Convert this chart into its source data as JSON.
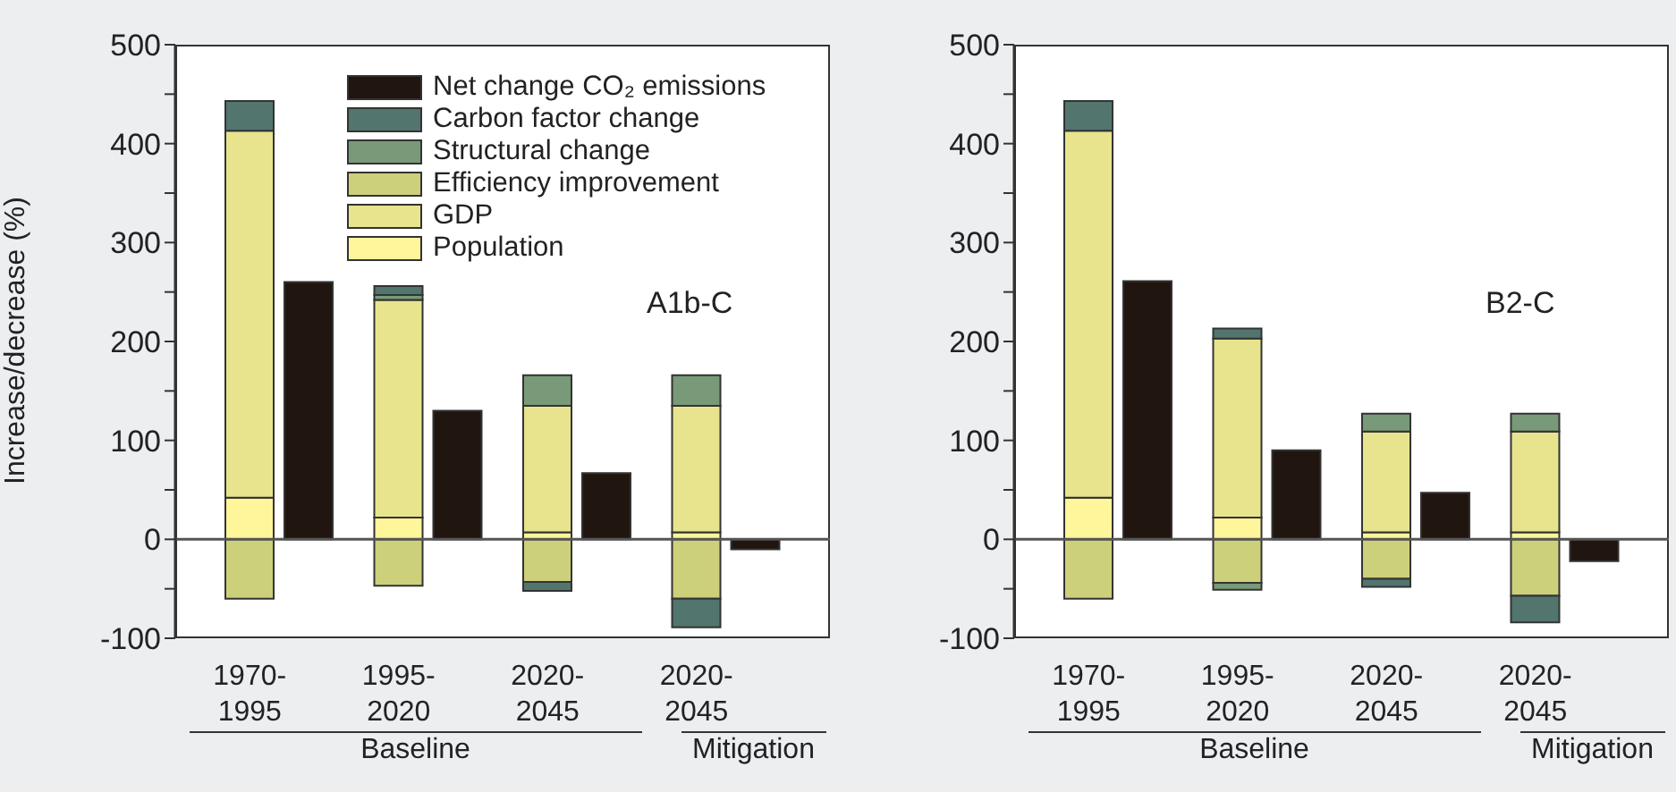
{
  "chart_data": [
    {
      "type": "bar",
      "title": "A1b-C",
      "ylabel": "Increase/decrease (%)",
      "categories": [
        "1970-1995",
        "1995-2020",
        "2020-2045",
        "2020-2045"
      ],
      "series": [
        {
          "name": "Population",
          "color": "#fff59a",
          "base": [
            0,
            0,
            0,
            0
          ],
          "values": [
            42,
            22,
            7,
            7
          ]
        },
        {
          "name": "GDP",
          "color": "#e8e48e",
          "base": [
            42,
            22,
            7,
            7
          ],
          "values": [
            371,
            220,
            128,
            128
          ]
        },
        {
          "name": "Efficiency improvement",
          "color": "#cdd07a",
          "base": [
            0,
            0,
            0,
            0
          ],
          "values": [
            -60,
            -47,
            -43,
            -60
          ]
        },
        {
          "name": "Structural change",
          "color": "#789a78",
          "base": [
            null,
            242,
            135,
            135
          ],
          "values": [
            null,
            5,
            31,
            31
          ]
        },
        {
          "name": "Carbon factor change",
          "color": "#52756e",
          "base": [
            413,
            247,
            -43,
            -60
          ],
          "values": [
            30,
            9,
            -9,
            -29
          ]
        },
        {
          "name": "Net change CO₂ emissions",
          "color": "#211510",
          "values": [
            260,
            130,
            67,
            -10
          ]
        }
      ],
      "ylim": [
        -100,
        500
      ],
      "yticks": [
        -100,
        {
          "value": -50,
          "label": null
        },
        0,
        {
          "value": 50,
          "label": null
        },
        100,
        {
          "value": 150,
          "label": null
        },
        200,
        {
          "value": 250,
          "label": null
        },
        300,
        {
          "value": 350,
          "label": null
        },
        400,
        {
          "value": 450,
          "label": null
        },
        500
      ],
      "ref_lines": [
        {
          "axis": "y",
          "value": 0,
          "color": "#555555"
        }
      ],
      "legend": "top",
      "grid": false,
      "annotations": [
        "Baseline",
        "Mitigation"
      ]
    },
    {
      "type": "bar",
      "title": "B2-C",
      "categories": [
        "1970-1995",
        "1995-2020",
        "2020-2045",
        "2020-2045"
      ],
      "series": [
        {
          "color": "#fff59a",
          "base": [
            0,
            0,
            0,
            0
          ],
          "values": [
            42,
            22,
            7,
            7
          ]
        },
        {
          "color": "#e8e48e",
          "base": [
            42,
            22,
            7,
            7
          ],
          "values": [
            371,
            181,
            102,
            102
          ]
        },
        {
          "color": "#cdd07a",
          "base": [
            0,
            0,
            0,
            0
          ],
          "values": [
            -60,
            -44,
            -40,
            -57
          ]
        },
        {
          "color": "#789a78",
          "base": [
            null,
            -44,
            109,
            109
          ],
          "values": [
            null,
            -7,
            18,
            18
          ]
        },
        {
          "color": "#52756e",
          "base": [
            413,
            203,
            -40,
            -57
          ],
          "values": [
            30,
            10,
            -8,
            -27
          ]
        },
        {
          "color": "#211510",
          "values": [
            261,
            90,
            47,
            -22
          ]
        }
      ],
      "ylim": [
        -100,
        500
      ],
      "yticks": [
        -100,
        {
          "value": -50,
          "label": null
        },
        0,
        {
          "value": 50,
          "label": null
        },
        100,
        {
          "value": 150,
          "label": null
        },
        200,
        {
          "value": 250,
          "label": null
        },
        300,
        {
          "value": 350,
          "label": null
        },
        400,
        {
          "value": 450,
          "label": null
        },
        500
      ],
      "ref_lines": [
        {
          "axis": "y",
          "value": 0,
          "color": "#555555"
        }
      ],
      "grid": false,
      "annotations": [
        "Baseline",
        "Mitigation"
      ]
    }
  ]
}
